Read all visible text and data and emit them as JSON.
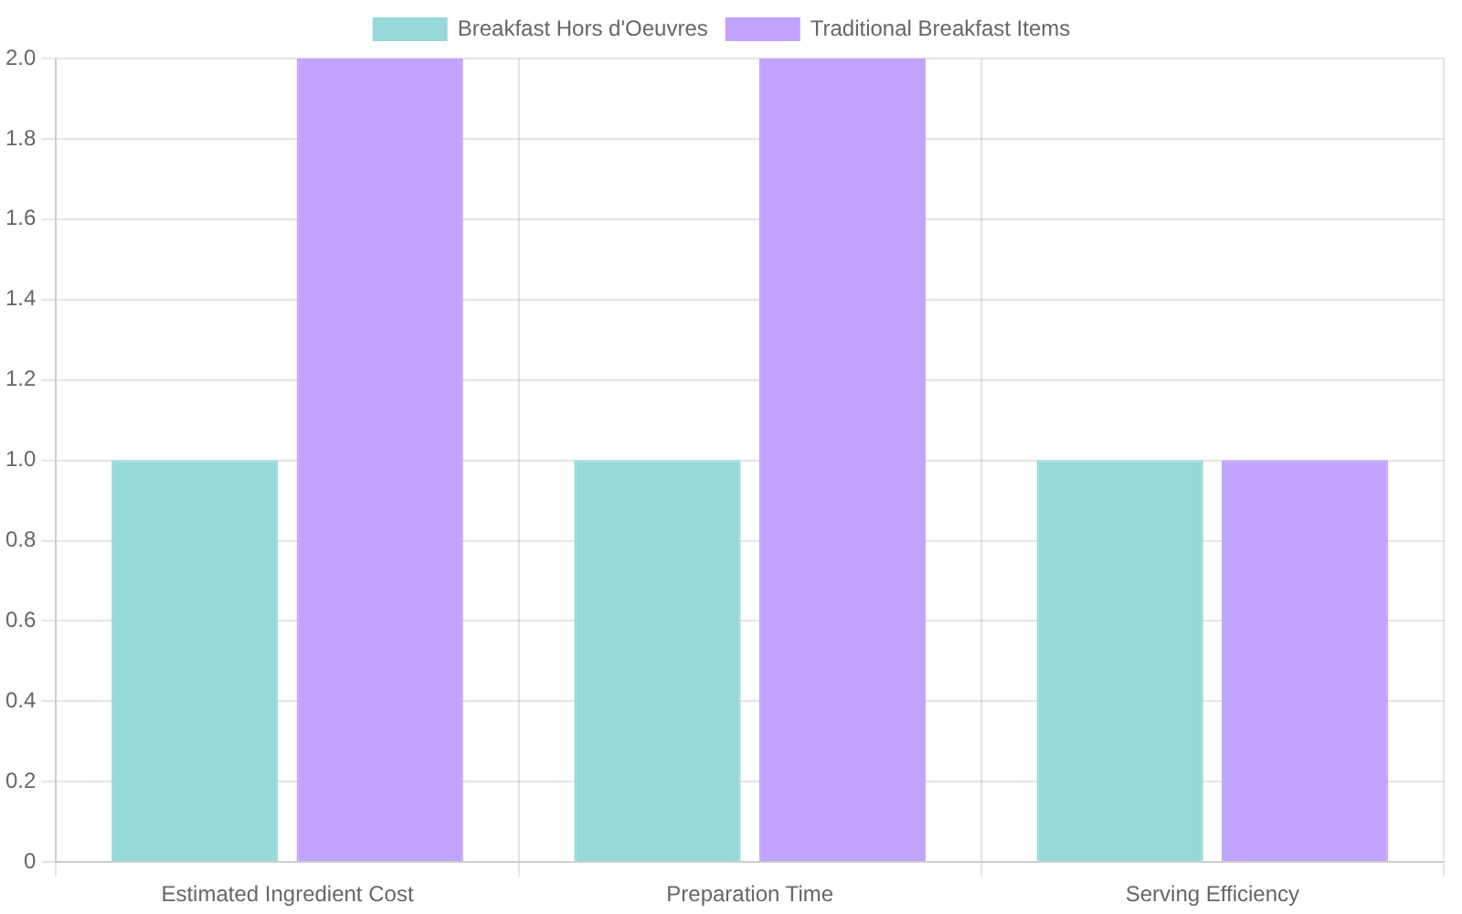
{
  "chart_data": {
    "type": "bar",
    "categories": [
      "Estimated Ingredient Cost",
      "Preparation Time",
      "Serving Efficiency"
    ],
    "series": [
      {
        "name": "Breakfast Hors d'Oeuvres",
        "color": "#95d9d8",
        "values": [
          1,
          1,
          1
        ]
      },
      {
        "name": "Traditional Breakfast Items",
        "color": "#c2a3fe",
        "values": [
          2,
          2,
          1
        ]
      }
    ],
    "ylim": [
      0,
      2
    ],
    "yticks": [
      0,
      0.2,
      0.4,
      0.6,
      0.8,
      {
        "value": 1,
        "label": "1.0"
      },
      1.2,
      1.4,
      1.6,
      1.8,
      {
        "value": 2,
        "label": "2.0"
      }
    ],
    "grid": true,
    "legend": "top"
  }
}
